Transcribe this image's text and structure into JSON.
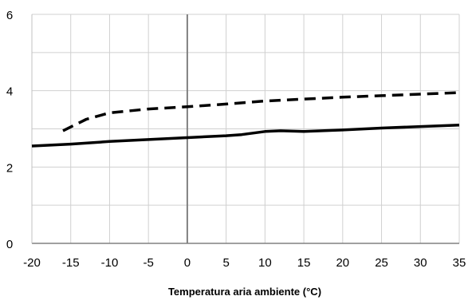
{
  "chart_data": {
    "type": "line",
    "title": "",
    "xlabel": "Temperatura aria ambiente (°C)",
    "ylabel": "",
    "xlim": [
      -20,
      35
    ],
    "ylim": [
      0,
      6
    ],
    "x_ticks": [
      -20,
      -15,
      -10,
      -5,
      0,
      5,
      10,
      15,
      20,
      25,
      30,
      35
    ],
    "y_ticks": [
      0,
      2,
      4,
      6
    ],
    "x_tick_labels": [
      "-20",
      "-15",
      "-10",
      "-5",
      "0",
      "5",
      "10",
      "15",
      "20",
      "25",
      "30",
      "35"
    ],
    "y_tick_labels": [
      "0",
      "2",
      "4",
      "6"
    ],
    "grid": true,
    "legend": "none",
    "series": [
      {
        "style": "solid",
        "color": "#000000",
        "x": [
          -20,
          -15,
          -10,
          -5,
          0,
          5,
          7,
          10,
          12,
          15,
          20,
          25,
          30,
          35
        ],
        "y": [
          2.55,
          2.6,
          2.67,
          2.72,
          2.77,
          2.82,
          2.85,
          2.93,
          2.95,
          2.93,
          2.97,
          3.02,
          3.06,
          3.1
        ]
      },
      {
        "style": "dashed",
        "color": "#000000",
        "x": [
          -16,
          -13,
          -10,
          -5,
          0,
          5,
          10,
          15,
          20,
          25,
          30,
          35
        ],
        "y": [
          2.95,
          3.25,
          3.42,
          3.52,
          3.58,
          3.65,
          3.73,
          3.78,
          3.83,
          3.87,
          3.91,
          3.95
        ]
      }
    ]
  }
}
